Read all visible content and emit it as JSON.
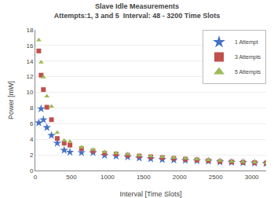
{
  "chart_data": {
    "type": "scatter",
    "title": "Slave Idle Measurements",
    "subtitle": "Attempts:1, 3 and 5  Interval: 48 - 3200 Time Slots",
    "xlabel": "Interval [Time Slots]",
    "ylabel": "Power [mW]",
    "xlim": [
      0,
      3200
    ],
    "ylim": [
      0,
      18
    ],
    "xticks": [
      0,
      500,
      1000,
      1500,
      2000,
      2500,
      3000
    ],
    "yticks": [
      0,
      2,
      4,
      6,
      8,
      10,
      12,
      14,
      16,
      18
    ],
    "grid": "y",
    "legend": "upper right",
    "series": [
      {
        "name": "1 Attempt",
        "color": "#4472C4",
        "marker": "star",
        "x": [
          48,
          80,
          112,
          160,
          224,
          304,
          400,
          480,
          640,
          800,
          960,
          1120,
          1280,
          1440,
          1600,
          1760,
          1920,
          2080,
          2240,
          2400,
          2560,
          2720,
          2880,
          3040,
          3200
        ],
        "values": [
          6.1,
          7.9,
          6.5,
          5.5,
          4.5,
          3.5,
          2.6,
          2.35,
          2.3,
          2.3,
          1.95,
          1.85,
          1.75,
          1.6,
          1.5,
          1.4,
          1.35,
          1.3,
          1.25,
          1.2,
          1.1,
          1.05,
          1.0,
          0.95,
          0.9
        ]
      },
      {
        "name": "3 Attempts",
        "color": "#C0504D",
        "marker": "square",
        "x": [
          48,
          80,
          112,
          160,
          224,
          304,
          400,
          480,
          640,
          800,
          960,
          1120,
          1280,
          1440,
          1600,
          1760,
          1920,
          2080,
          2240,
          2400,
          2560,
          2720,
          2880,
          3040,
          3200
        ],
        "values": [
          15.3,
          12.2,
          10.35,
          8.1,
          6.5,
          4.1,
          3.5,
          3.25,
          2.8,
          2.5,
          2.2,
          2.1,
          1.95,
          1.85,
          1.75,
          1.65,
          1.55,
          1.45,
          1.35,
          1.25,
          1.15,
          1.1,
          1.05,
          1.0,
          0.95
        ]
      },
      {
        "name": "5 Attempts",
        "color": "#9BBB59",
        "marker": "triangle-up",
        "x": [
          48,
          80,
          112,
          160,
          224,
          304,
          400,
          480,
          640,
          800,
          960,
          1120,
          1280,
          1440,
          1600,
          1760,
          1920,
          2080,
          2240,
          2400,
          2560,
          2720,
          2880,
          3040,
          3200
        ],
        "values": [
          16.7,
          13.85,
          11.95,
          9.5,
          8.2,
          4.85,
          3.85,
          3.7,
          3.0,
          2.7,
          2.4,
          2.25,
          2.1,
          1.95,
          1.85,
          1.75,
          1.65,
          1.55,
          1.45,
          1.35,
          1.25,
          1.15,
          1.1,
          1.05,
          0.95
        ]
      }
    ]
  }
}
